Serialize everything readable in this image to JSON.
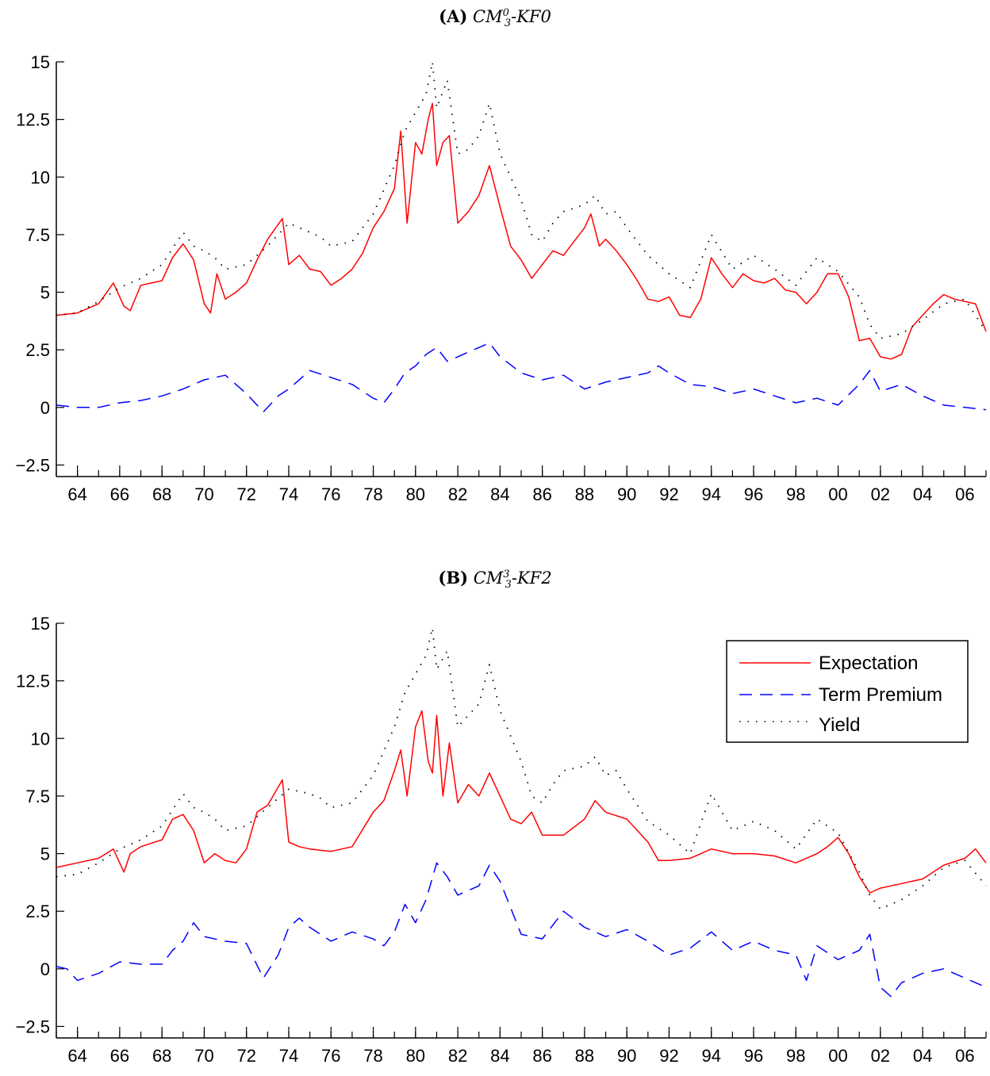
{
  "panels": [
    {
      "tag": "(A)",
      "model": "CM",
      "model_sup": "0",
      "model_sub": "3",
      "model_suffix": "-KF0"
    },
    {
      "tag": "(B)",
      "model": "CM",
      "model_sup": "3",
      "model_sub": "3",
      "model_suffix": "-KF2"
    }
  ],
  "legend": {
    "expectation": "Expectation",
    "term_premium": "Term Premium",
    "yield": "Yield"
  },
  "colors": {
    "expectation": "#ff0000",
    "term_premium": "#0000ff",
    "yield": "#000000"
  },
  "chart_data": [
    {
      "type": "line",
      "title": "(A) CM_3^0-KF0",
      "xlabel": "",
      "ylabel": "",
      "xlim": [
        1963.0,
        2007.0
      ],
      "ylim": [
        -3.0,
        15.0
      ],
      "x_ticks": [
        1964,
        1966,
        1968,
        1970,
        1972,
        1974,
        1976,
        1978,
        1980,
        1982,
        1984,
        1986,
        1988,
        1990,
        1992,
        1994,
        1996,
        1998,
        2000,
        2002,
        2004,
        2006
      ],
      "x_tick_labels": [
        "64",
        "66",
        "68",
        "70",
        "72",
        "74",
        "76",
        "78",
        "80",
        "82",
        "84",
        "86",
        "88",
        "90",
        "92",
        "94",
        "96",
        "98",
        "00",
        "02",
        "04",
        "06"
      ],
      "y_ticks": [
        -2.5,
        0,
        2.5,
        5,
        7.5,
        10,
        12.5,
        15
      ],
      "y_tick_labels": [
        "−2.5",
        "0",
        "2.5",
        "5",
        "7.5",
        "10",
        "12.5",
        "15"
      ],
      "legend_position": "none",
      "series": [
        {
          "name": "Expectation",
          "style": "solid",
          "x": [
            1963.0,
            1964.0,
            1965.0,
            1965.7,
            1966.2,
            1966.5,
            1967.0,
            1967.5,
            1968.0,
            1968.5,
            1969.0,
            1969.5,
            1970.0,
            1970.3,
            1970.6,
            1971.0,
            1971.5,
            1972.0,
            1972.5,
            1973.0,
            1973.7,
            1974.0,
            1974.5,
            1975.0,
            1975.5,
            1976.0,
            1976.5,
            1977.0,
            1977.5,
            1978.0,
            1978.5,
            1979.0,
            1979.3,
            1979.6,
            1980.0,
            1980.3,
            1980.6,
            1980.8,
            1981.0,
            1981.3,
            1981.6,
            1982.0,
            1982.5,
            1983.0,
            1983.5,
            1984.0,
            1984.5,
            1985.0,
            1985.5,
            1986.0,
            1986.5,
            1987.0,
            1987.5,
            1988.0,
            1988.3,
            1988.7,
            1989.0,
            1989.5,
            1990.0,
            1990.5,
            1991.0,
            1991.5,
            1992.0,
            1992.5,
            1993.0,
            1993.5,
            1994.0,
            1994.5,
            1995.0,
            1995.5,
            1996.0,
            1996.5,
            1997.0,
            1997.5,
            1998.0,
            1998.5,
            1999.0,
            1999.5,
            2000.0,
            2000.5,
            2001.0,
            2001.5,
            2002.0,
            2002.5,
            2003.0,
            2003.5,
            2004.0,
            2004.5,
            2005.0,
            2005.5,
            2006.0,
            2006.5,
            2007.0
          ],
          "values": [
            4.0,
            4.1,
            4.5,
            5.4,
            4.4,
            4.2,
            5.3,
            5.4,
            5.5,
            6.5,
            7.1,
            6.4,
            4.5,
            4.1,
            5.8,
            4.7,
            5.0,
            5.4,
            6.4,
            7.3,
            8.2,
            6.2,
            6.6,
            6.0,
            5.9,
            5.3,
            5.6,
            6.0,
            6.7,
            7.8,
            8.5,
            9.5,
            12.0,
            8.0,
            11.5,
            11.0,
            12.5,
            13.2,
            10.5,
            11.5,
            11.8,
            8.0,
            8.5,
            9.2,
            10.5,
            8.7,
            7.0,
            6.4,
            5.6,
            6.2,
            6.8,
            6.6,
            7.2,
            7.8,
            8.4,
            7.0,
            7.3,
            6.8,
            6.2,
            5.5,
            4.7,
            4.6,
            4.8,
            4.0,
            3.9,
            4.7,
            6.5,
            5.8,
            5.2,
            5.8,
            5.5,
            5.4,
            5.6,
            5.1,
            5.0,
            4.5,
            5.0,
            5.8,
            5.8,
            4.8,
            2.9,
            3.0,
            2.2,
            2.1,
            2.3,
            3.5,
            4.0,
            4.5,
            4.9,
            4.7,
            4.6,
            4.5,
            3.3
          ]
        },
        {
          "name": "Term Premium",
          "style": "dashed",
          "x": [
            1963.0,
            1964.0,
            1965.0,
            1966.0,
            1967.0,
            1968.0,
            1969.0,
            1970.0,
            1971.0,
            1972.0,
            1972.8,
            1973.5,
            1974.0,
            1975.0,
            1976.0,
            1977.0,
            1978.0,
            1978.5,
            1979.0,
            1979.5,
            1980.0,
            1980.5,
            1981.0,
            1981.5,
            1982.0,
            1983.0,
            1983.5,
            1984.0,
            1985.0,
            1986.0,
            1987.0,
            1988.0,
            1989.0,
            1990.0,
            1991.0,
            1991.5,
            1992.0,
            1993.0,
            1994.0,
            1995.0,
            1996.0,
            1997.0,
            1998.0,
            1999.0,
            2000.0,
            2001.0,
            2001.5,
            2002.0,
            2003.0,
            2004.0,
            2005.0,
            2006.0,
            2007.0
          ],
          "values": [
            0.1,
            0.0,
            0.0,
            0.2,
            0.3,
            0.5,
            0.8,
            1.2,
            1.4,
            0.6,
            -0.2,
            0.5,
            0.8,
            1.6,
            1.3,
            1.0,
            0.4,
            0.2,
            0.8,
            1.5,
            1.8,
            2.3,
            2.6,
            2.0,
            2.2,
            2.6,
            2.8,
            2.2,
            1.5,
            1.2,
            1.4,
            0.8,
            1.1,
            1.3,
            1.5,
            1.8,
            1.5,
            1.0,
            0.9,
            0.6,
            0.8,
            0.5,
            0.2,
            0.4,
            0.1,
            1.0,
            1.6,
            0.7,
            1.0,
            0.5,
            0.1,
            0.0,
            -0.1
          ]
        },
        {
          "name": "Yield",
          "style": "dotted",
          "x": [
            1963.0,
            1964.0,
            1965.0,
            1966.0,
            1967.0,
            1968.0,
            1969.0,
            1969.5,
            1970.0,
            1970.5,
            1971.0,
            1972.0,
            1973.0,
            1974.0,
            1975.0,
            1975.5,
            1976.0,
            1977.0,
            1978.0,
            1979.0,
            1979.5,
            1980.0,
            1980.5,
            1980.8,
            1981.0,
            1981.5,
            1982.0,
            1982.5,
            1983.0,
            1983.5,
            1984.0,
            1985.0,
            1985.5,
            1986.0,
            1986.5,
            1987.0,
            1988.0,
            1988.5,
            1989.0,
            1989.5,
            1990.0,
            1991.0,
            1992.0,
            1993.0,
            1994.0,
            1995.0,
            1996.0,
            1997.0,
            1998.0,
            1999.0,
            2000.0,
            2001.0,
            2001.5,
            2002.0,
            2003.0,
            2004.0,
            2005.0,
            2006.0,
            2007.0
          ],
          "values": [
            4.0,
            4.1,
            4.6,
            5.2,
            5.6,
            6.2,
            7.6,
            7.0,
            6.8,
            6.5,
            6.0,
            6.2,
            7.0,
            8.0,
            7.6,
            7.4,
            7.0,
            7.2,
            8.4,
            10.5,
            12.0,
            12.8,
            13.6,
            15.0,
            13.0,
            14.2,
            11.0,
            11.2,
            11.8,
            13.2,
            11.0,
            9.0,
            7.5,
            7.2,
            8.0,
            8.5,
            8.8,
            9.2,
            8.4,
            8.5,
            7.8,
            6.6,
            5.8,
            5.2,
            7.5,
            6.0,
            6.6,
            6.0,
            5.3,
            6.5,
            5.9,
            4.8,
            3.6,
            3.0,
            3.2,
            3.8,
            4.5,
            4.7,
            3.3
          ]
        }
      ]
    },
    {
      "type": "line",
      "title": "(B) CM_3^3-KF2",
      "xlabel": "",
      "ylabel": "",
      "xlim": [
        1963.0,
        2007.0
      ],
      "ylim": [
        -3.0,
        15.0
      ],
      "x_ticks": [
        1964,
        1966,
        1968,
        1970,
        1972,
        1974,
        1976,
        1978,
        1980,
        1982,
        1984,
        1986,
        1988,
        1990,
        1992,
        1994,
        1996,
        1998,
        2000,
        2002,
        2004,
        2006
      ],
      "x_tick_labels": [
        "64",
        "66",
        "68",
        "70",
        "72",
        "74",
        "76",
        "78",
        "80",
        "82",
        "84",
        "86",
        "88",
        "90",
        "92",
        "94",
        "96",
        "98",
        "00",
        "02",
        "04",
        "06"
      ],
      "y_ticks": [
        -2.5,
        0,
        2.5,
        5,
        7.5,
        10,
        12.5,
        15
      ],
      "y_tick_labels": [
        "−2.5",
        "0",
        "2.5",
        "5",
        "7.5",
        "10",
        "12.5",
        "15"
      ],
      "legend_position": "top-right",
      "series": [
        {
          "name": "Expectation",
          "style": "solid",
          "x": [
            1963.0,
            1964.0,
            1965.0,
            1965.7,
            1966.2,
            1966.5,
            1967.0,
            1968.0,
            1968.5,
            1969.0,
            1969.5,
            1970.0,
            1970.5,
            1971.0,
            1971.5,
            1972.0,
            1972.5,
            1973.0,
            1973.7,
            1974.0,
            1974.5,
            1975.0,
            1976.0,
            1977.0,
            1978.0,
            1978.5,
            1979.0,
            1979.3,
            1979.6,
            1980.0,
            1980.3,
            1980.6,
            1980.8,
            1981.0,
            1981.3,
            1981.6,
            1982.0,
            1982.5,
            1983.0,
            1983.5,
            1984.0,
            1984.5,
            1985.0,
            1985.5,
            1986.0,
            1987.0,
            1988.0,
            1988.5,
            1989.0,
            1990.0,
            1991.0,
            1991.5,
            1992.0,
            1993.0,
            1994.0,
            1995.0,
            1996.0,
            1997.0,
            1998.0,
            1999.0,
            1999.5,
            2000.0,
            2000.5,
            2001.0,
            2001.5,
            2002.0,
            2003.0,
            2004.0,
            2005.0,
            2006.0,
            2006.5,
            2007.0
          ],
          "values": [
            4.4,
            4.6,
            4.8,
            5.2,
            4.2,
            5.0,
            5.3,
            5.6,
            6.5,
            6.7,
            6.0,
            4.6,
            5.0,
            4.7,
            4.6,
            5.2,
            6.8,
            7.1,
            8.2,
            5.5,
            5.3,
            5.2,
            5.1,
            5.3,
            6.8,
            7.3,
            8.6,
            9.5,
            7.5,
            10.5,
            11.2,
            9.0,
            8.5,
            11.0,
            7.5,
            9.8,
            7.2,
            8.0,
            7.5,
            8.5,
            7.5,
            6.5,
            6.3,
            6.8,
            5.8,
            5.8,
            6.5,
            7.3,
            6.8,
            6.5,
            5.5,
            4.7,
            4.7,
            4.8,
            5.2,
            5.0,
            5.0,
            4.9,
            4.6,
            5.0,
            5.3,
            5.7,
            5.0,
            4.0,
            3.3,
            3.5,
            3.7,
            3.9,
            4.5,
            4.8,
            5.2,
            4.6
          ]
        },
        {
          "name": "Term Premium",
          "style": "dashed",
          "x": [
            1963.0,
            1963.5,
            1964.0,
            1965.0,
            1966.0,
            1967.0,
            1968.0,
            1968.5,
            1969.0,
            1969.5,
            1970.0,
            1971.0,
            1972.0,
            1972.8,
            1973.5,
            1974.0,
            1974.5,
            1975.0,
            1976.0,
            1977.0,
            1978.0,
            1978.5,
            1979.0,
            1979.5,
            1980.0,
            1980.5,
            1981.0,
            1981.5,
            1982.0,
            1983.0,
            1983.5,
            1984.0,
            1985.0,
            1986.0,
            1987.0,
            1988.0,
            1989.0,
            1990.0,
            1991.0,
            1992.0,
            1993.0,
            1994.0,
            1995.0,
            1996.0,
            1997.0,
            1998.0,
            1998.5,
            1999.0,
            2000.0,
            2001.0,
            2001.5,
            2002.0,
            2002.5,
            2003.0,
            2004.0,
            2005.0,
            2006.0,
            2007.0
          ],
          "values": [
            0.1,
            0.0,
            -0.5,
            -0.2,
            0.3,
            0.2,
            0.2,
            0.8,
            1.2,
            2.0,
            1.4,
            1.2,
            1.1,
            -0.4,
            0.6,
            1.8,
            2.2,
            1.8,
            1.2,
            1.6,
            1.3,
            1.0,
            1.6,
            2.8,
            2.0,
            3.0,
            4.6,
            4.0,
            3.2,
            3.6,
            4.5,
            3.8,
            1.5,
            1.3,
            2.5,
            1.8,
            1.4,
            1.7,
            1.2,
            0.6,
            0.9,
            1.6,
            0.8,
            1.2,
            0.8,
            0.6,
            -0.5,
            1.0,
            0.4,
            0.8,
            1.5,
            -0.8,
            -1.2,
            -0.6,
            -0.2,
            0.0,
            -0.4,
            -0.8
          ]
        },
        {
          "name": "Yield",
          "style": "dotted",
          "x": [
            1963.0,
            1964.0,
            1965.0,
            1966.0,
            1967.0,
            1968.0,
            1969.0,
            1969.5,
            1970.0,
            1970.5,
            1971.0,
            1972.0,
            1973.0,
            1974.0,
            1975.0,
            1975.5,
            1976.0,
            1977.0,
            1978.0,
            1979.0,
            1979.5,
            1980.0,
            1980.5,
            1980.8,
            1981.0,
            1981.5,
            1982.0,
            1982.5,
            1983.0,
            1983.5,
            1984.0,
            1985.0,
            1985.5,
            1986.0,
            1986.5,
            1987.0,
            1988.0,
            1988.5,
            1989.0,
            1989.5,
            1990.0,
            1991.0,
            1992.0,
            1993.0,
            1994.0,
            1995.0,
            1996.0,
            1997.0,
            1998.0,
            1999.0,
            2000.0,
            2001.0,
            2001.5,
            2002.0,
            2003.0,
            2004.0,
            2005.0,
            2006.0,
            2007.0
          ],
          "values": [
            4.0,
            4.1,
            4.6,
            5.2,
            5.6,
            6.2,
            7.6,
            7.0,
            6.8,
            6.5,
            6.0,
            6.2,
            7.0,
            7.8,
            7.6,
            7.4,
            7.0,
            7.2,
            8.4,
            10.5,
            12.0,
            12.8,
            13.6,
            14.8,
            13.0,
            13.8,
            10.5,
            11.0,
            11.5,
            13.2,
            11.2,
            9.0,
            7.5,
            7.2,
            8.0,
            8.6,
            8.8,
            9.2,
            8.4,
            8.6,
            7.8,
            6.4,
            5.8,
            5.0,
            7.6,
            6.0,
            6.4,
            6.0,
            5.2,
            6.5,
            5.9,
            4.2,
            3.2,
            2.6,
            3.0,
            3.6,
            4.4,
            4.7,
            3.6
          ]
        }
      ]
    }
  ]
}
